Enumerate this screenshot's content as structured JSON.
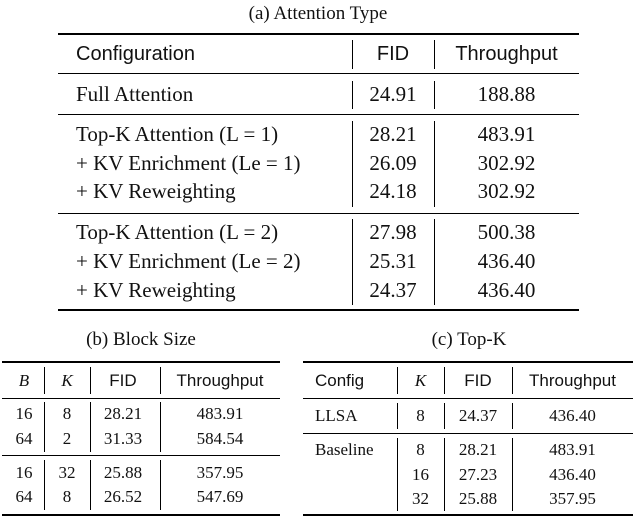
{
  "tableA": {
    "caption": "(a) Attention Type",
    "headers": [
      "Configuration",
      "FID",
      "Throughput"
    ],
    "groups": [
      [
        {
          "config": "Full Attention",
          "fid": "24.91",
          "throughput": "188.88"
        }
      ],
      [
        {
          "config": "Top-K Attention (L = 1)",
          "fid": "28.21",
          "throughput": "483.91"
        },
        {
          "config": "+ KV Enrichment (Le = 1)",
          "fid": "26.09",
          "throughput": "302.92"
        },
        {
          "config": "+ KV Reweighting",
          "fid": "24.18",
          "throughput": "302.92"
        }
      ],
      [
        {
          "config": "Top-K Attention (L = 2)",
          "fid": "27.98",
          "throughput": "500.38"
        },
        {
          "config": "+ KV Enrichment (Le = 2)",
          "fid": "25.31",
          "throughput": "436.40"
        },
        {
          "config": "+ KV Reweighting",
          "fid": "24.37",
          "throughput": "436.40"
        }
      ]
    ]
  },
  "tableB": {
    "caption": "(b) Block Size",
    "headers": [
      "B",
      "K",
      "FID",
      "Throughput"
    ],
    "groups": [
      [
        {
          "b": "16",
          "k": "8",
          "fid": "28.21",
          "throughput": "483.91"
        },
        {
          "b": "64",
          "k": "2",
          "fid": "31.33",
          "throughput": "584.54"
        }
      ],
      [
        {
          "b": "16",
          "k": "32",
          "fid": "25.88",
          "throughput": "357.95"
        },
        {
          "b": "64",
          "k": "8",
          "fid": "26.52",
          "throughput": "547.69"
        }
      ]
    ]
  },
  "tableC": {
    "caption": "(c) Top-K",
    "headers": [
      "Config",
      "K",
      "FID",
      "Throughput"
    ],
    "groups": [
      [
        {
          "config": "LLSA",
          "k": "8",
          "fid": "24.37",
          "throughput": "436.40"
        }
      ],
      [
        {
          "config": "Baseline",
          "k": "8",
          "fid": "28.21",
          "throughput": "483.91"
        },
        {
          "config": "",
          "k": "16",
          "fid": "27.23",
          "throughput": "436.40"
        },
        {
          "config": "",
          "k": "32",
          "fid": "25.88",
          "throughput": "357.95"
        }
      ]
    ]
  }
}
